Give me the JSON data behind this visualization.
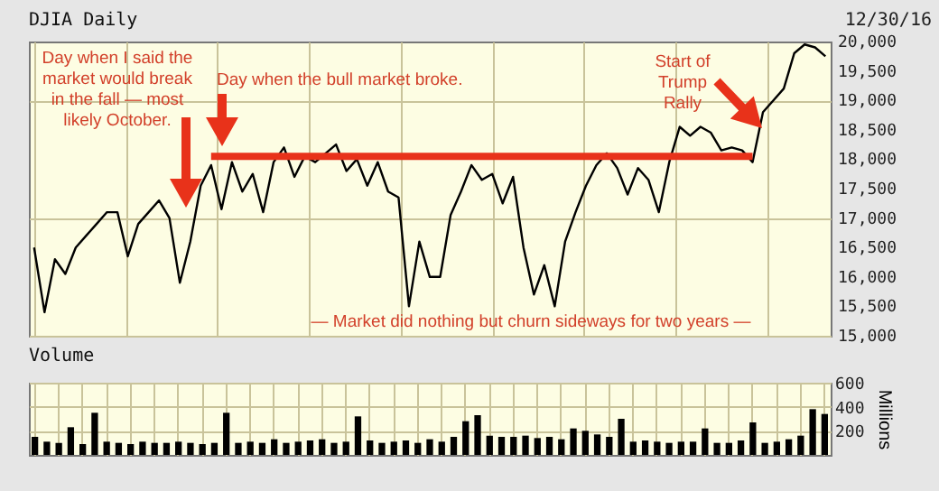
{
  "chart_data": [
    {
      "type": "line",
      "title": "DJIA Daily",
      "subtitle": "12/30/16",
      "annotations": [
        "Day when I said the market would break in the fall — most likely October.",
        "Day when the bull market broke.",
        "Start of Trump Rally",
        "— Market did nothing but churn sideways for two years —"
      ],
      "categories": [
        null,
        null,
        null,
        null,
        null,
        null,
        null,
        null,
        null,
        null,
        null,
        null,
        null,
        null,
        null,
        null,
        null,
        null,
        null,
        null,
        null,
        null,
        null,
        null,
        null,
        null,
        null,
        null,
        null,
        null,
        null,
        null,
        null,
        null,
        null,
        null,
        null,
        null,
        null,
        null,
        null,
        null,
        null,
        null,
        null,
        null,
        null,
        null,
        null,
        null,
        null,
        null,
        null,
        null,
        null,
        null,
        null,
        null,
        null,
        null,
        null,
        null,
        null,
        null,
        null,
        null,
        null,
        null,
        null,
        null,
        null,
        null,
        null,
        null,
        null,
        null,
        null
      ],
      "series": [
        {
          "type": "line",
          "color": "#000000",
          "values": [
            16500,
            15400,
            16300,
            16050,
            16500,
            16700,
            16900,
            17100,
            17100,
            16350,
            16900,
            17100,
            17300,
            17000,
            15900,
            16600,
            17550,
            17900,
            17150,
            17950,
            17450,
            17750,
            17100,
            17950,
            18200,
            17700,
            18050,
            17950,
            18100,
            18250,
            17800,
            18000,
            17550,
            17950,
            17450,
            17350,
            15500,
            16600,
            16000,
            16000,
            17050,
            17450,
            17900,
            17650,
            17750,
            17250,
            17700,
            16500,
            15700,
            16200,
            15500,
            16600,
            17100,
            17550,
            17900,
            18100,
            17850,
            17400,
            17850,
            17650,
            17100,
            17950,
            18550,
            18400,
            18550,
            18450,
            18150,
            18200,
            18150,
            17950,
            18800,
            19000,
            19200,
            19800,
            19950,
            19900,
            19750
          ]
        },
        {
          "type": "line",
          "color": "#e8321a",
          "values": [
            null,
            null,
            null,
            null,
            null,
            null,
            null,
            null,
            null,
            null,
            null,
            null,
            null,
            null,
            null,
            null,
            null,
            18050,
            18050,
            18050,
            18050,
            18050,
            18050,
            18050,
            18050,
            18050,
            18050,
            18050,
            18050,
            18050,
            18050,
            18050,
            18050,
            18050,
            18050,
            18050,
            18050,
            18050,
            18050,
            18050,
            18050,
            18050,
            18050,
            18050,
            18050,
            18050,
            18050,
            18050,
            18050,
            18050,
            18050,
            18050,
            18050,
            18050,
            18050,
            18050,
            18050,
            18050,
            18050,
            18050,
            18050,
            18050,
            18050,
            18050,
            18050,
            18050,
            18050,
            18050,
            18050,
            18050,
            null,
            null,
            null,
            null,
            null,
            null,
            null
          ]
        }
      ],
      "ylim": [
        15000,
        20000
      ],
      "yticks": [
        {
          "value": 15000,
          "label": "15,000"
        },
        {
          "value": 15500,
          "label": "15,500"
        },
        {
          "value": 16000,
          "label": "16,000"
        },
        {
          "value": 16500,
          "label": "16,500"
        },
        {
          "value": 17000,
          "label": "17,000"
        },
        {
          "value": 17500,
          "label": "17,500"
        },
        {
          "value": 18000,
          "label": "18,000"
        },
        {
          "value": 18500,
          "label": "18,500"
        },
        {
          "value": 19000,
          "label": "19,000"
        },
        {
          "value": 19500,
          "label": "19,500"
        },
        {
          "value": 20000,
          "label": "20,000"
        }
      ],
      "grid": true
    },
    {
      "type": "bar",
      "title": "Volume",
      "ylabel": "Millions",
      "categories": [
        null,
        null,
        null,
        null,
        null,
        null,
        null,
        null,
        null,
        null,
        null,
        null,
        null,
        null,
        null,
        null,
        null,
        null,
        null,
        null,
        null,
        null,
        null,
        null,
        null,
        null,
        null,
        null,
        null,
        null,
        null,
        null,
        null,
        null,
        null,
        null,
        null,
        null,
        null,
        null,
        null,
        null,
        null,
        null,
        null,
        null,
        null,
        null,
        null,
        null,
        null,
        null,
        null,
        null,
        null,
        null,
        null,
        null,
        null,
        null,
        null,
        null,
        null,
        null,
        null,
        null,
        null
      ],
      "values": [
        150,
        110,
        100,
        230,
        90,
        350,
        110,
        100,
        90,
        110,
        100,
        100,
        110,
        100,
        90,
        100,
        350,
        100,
        110,
        100,
        130,
        100,
        110,
        120,
        130,
        100,
        110,
        320,
        120,
        100,
        110,
        120,
        100,
        130,
        110,
        150,
        280,
        330,
        160,
        150,
        150,
        160,
        140,
        150,
        130,
        220,
        200,
        170,
        150,
        300,
        110,
        120,
        110,
        100,
        110,
        110,
        220,
        100,
        100,
        120,
        270,
        100,
        110,
        130,
        160,
        380,
        340
      ],
      "color": "#000000",
      "ylim": [
        0,
        600
      ],
      "yticks": [
        200,
        400,
        600
      ],
      "grid": true
    }
  ]
}
